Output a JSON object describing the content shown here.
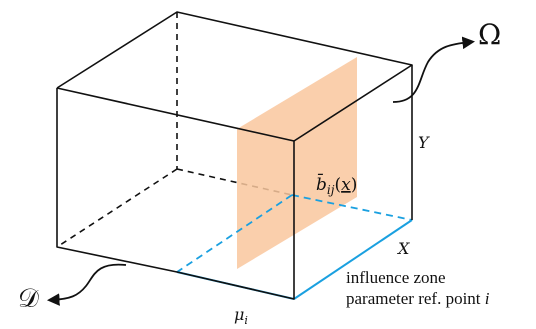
{
  "colors": {
    "edge": "#111111",
    "zone_edge": "#1aa0e0",
    "plane_fill": "#f9c79e"
  },
  "labels": {
    "omega": "Ω",
    "y_axis": "Y",
    "x_axis": "X",
    "domain_d": "𝒟",
    "b_func": {
      "base": "b̄",
      "subscript": "ij",
      "open": "(",
      "arg": "x",
      "close": ")"
    },
    "mu": {
      "base": "μ",
      "subscript": "i"
    },
    "influence_line1": "influence zone",
    "influence_line2_text": "parameter ref. point",
    "influence_line2_var": "i"
  },
  "icons": {
    "omega_pointer": "curved-arrow-icon",
    "domain_pointer": "curved-arrow-icon"
  }
}
